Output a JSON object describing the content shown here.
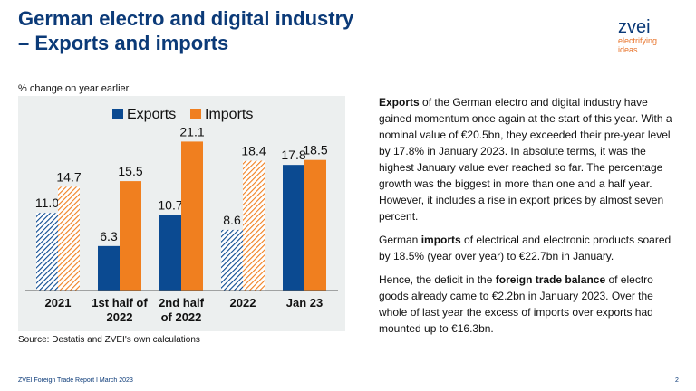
{
  "header": {
    "title": "German electro and digital industry",
    "subtitle": "– Exports and imports"
  },
  "logo": {
    "word": "zvei",
    "tag_line1": "electrifying",
    "tag_line2": "ideas"
  },
  "chart_unit_label": "% change on year earlier",
  "source": "Source: Destatis and ZVEI's own calculations",
  "body_text": {
    "p1_part1_bold": "Exports",
    "p1_part2": " of the German electro and digital industry have gained momentum once again at the start of this year. With a nominal value of €20.5bn, they exceeded their pre-year level by 17.8% in January 2023. In absolute terms, it was the highest January value ever reached so far. The percentage growth was the biggest in more than one and a half year. However, it includes a rise in export prices by almost seven percent.",
    "p2_part1": "German ",
    "p2_part2_bold": "imports",
    "p2_part3": " of electrical and electronic products soared by 18.5% (year over year) to €22.7bn in January.",
    "p3_part1": "Hence, the deficit in the ",
    "p3_part2_bold": "foreign trade balance",
    "p3_part3": " of electro goods already came to €2.2bn in January 2023. Over the whole of last year the excess of imports over exports had mounted up to €16.3bn."
  },
  "footer": {
    "left": "ZVEI Foreign Trade Report I March 2023",
    "page_number": "2"
  },
  "colors": {
    "exports": "#0b4a91",
    "imports": "#f07f1f",
    "chart_background": "#ecefef",
    "title": "#0b3a78"
  },
  "chart_data": {
    "type": "bar",
    "title": "",
    "xlabel": "",
    "ylabel": "% change on year earlier",
    "categories": [
      "2021",
      "1st half of 2022",
      "2nd half of 2022",
      "2022",
      "Jan 23"
    ],
    "category_label_lines": [
      [
        "2021"
      ],
      [
        "1st half of",
        "2022"
      ],
      [
        "2nd half",
        "of 2022"
      ],
      [
        "2022"
      ],
      [
        "Jan 23"
      ]
    ],
    "series": [
      {
        "name": "Exports",
        "values": [
          11.0,
          6.3,
          10.7,
          8.6,
          17.8
        ],
        "labels": [
          "11.0",
          "6.3",
          "10.7",
          "8.6",
          "17.8"
        ],
        "hatched": [
          true,
          false,
          false,
          true,
          false
        ]
      },
      {
        "name": "Imports",
        "values": [
          14.7,
          15.5,
          21.1,
          18.4,
          18.5
        ],
        "labels": [
          "14.7",
          "15.5",
          "21.1",
          "18.4",
          "18.5"
        ],
        "hatched": [
          true,
          false,
          false,
          true,
          false
        ]
      }
    ],
    "ylim": [
      0,
      25
    ],
    "grid": false,
    "legend_position": "top"
  }
}
